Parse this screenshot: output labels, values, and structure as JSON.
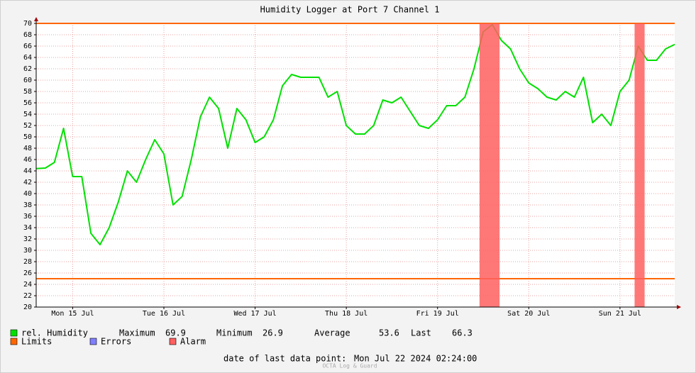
{
  "chart_data": {
    "type": "line",
    "title": "Humidity Logger at Port 7 Channel 1",
    "x": [
      15.1,
      15.2,
      15.3,
      15.4,
      15.5,
      15.6,
      15.7,
      15.8,
      15.9,
      16.0,
      16.1,
      16.2,
      16.3,
      16.4,
      16.5,
      16.6,
      16.7,
      16.8,
      16.9,
      17.0,
      17.1,
      17.2,
      17.3,
      17.4,
      17.5,
      17.6,
      17.7,
      17.8,
      17.9,
      18.0,
      18.1,
      18.2,
      18.3,
      18.4,
      18.5,
      18.6,
      18.7,
      18.8,
      18.9,
      19.0,
      19.1,
      19.2,
      19.3,
      19.4,
      19.5,
      19.6,
      19.7,
      19.8,
      19.9,
      20.0,
      20.1,
      20.2,
      20.3,
      20.4,
      20.5,
      20.6,
      20.7,
      20.8,
      20.9,
      21.0,
      21.1,
      21.2,
      21.3,
      21.4,
      21.5,
      21.6,
      21.7,
      21.8,
      21.9,
      22.0,
      22.1
    ],
    "xlim": [
      15.1,
      22.1
    ],
    "xticks": [
      {
        "value": 15.5,
        "label": "Mon 15 Jul"
      },
      {
        "value": 16.5,
        "label": "Tue 16 Jul"
      },
      {
        "value": 17.5,
        "label": "Wed 17 Jul"
      },
      {
        "value": 18.5,
        "label": "Thu 18 Jul"
      },
      {
        "value": 19.5,
        "label": "Fri 19 Jul"
      },
      {
        "value": 20.5,
        "label": "Sat 20 Jul"
      },
      {
        "value": 21.5,
        "label": "Sun 21 Jul"
      }
    ],
    "ylim": [
      20,
      70
    ],
    "yticks": [
      20,
      22,
      24,
      26,
      28,
      30,
      32,
      34,
      36,
      38,
      40,
      42,
      44,
      46,
      48,
      50,
      52,
      54,
      56,
      58,
      60,
      62,
      64,
      66,
      68,
      70
    ],
    "grid": true,
    "series": [
      {
        "name": "rel. Humidity",
        "color": "#00e000",
        "values": [
          44.4,
          44.5,
          45.5,
          51.5,
          43,
          43,
          33,
          31,
          34,
          38.5,
          44,
          42,
          46,
          49.5,
          47,
          38,
          39.5,
          46,
          53.5,
          57,
          55,
          48,
          55,
          53,
          49,
          50,
          53,
          59,
          61,
          60.5,
          60.5,
          60.5,
          57,
          58,
          52,
          50.5,
          50.5,
          52,
          56.5,
          56,
          57,
          54.5,
          52,
          51.5,
          53,
          55.5,
          55.5,
          57,
          62,
          68.5,
          69.8,
          67,
          65.5,
          62,
          59.5,
          58.5,
          57,
          56.5,
          58,
          57,
          60.5,
          52.5,
          54,
          52,
          58,
          60,
          66,
          63.5,
          63.5,
          65.5,
          66.3
        ]
      }
    ],
    "limits": {
      "name": "Limits",
      "color": "#ff6600",
      "values": [
        25,
        70
      ]
    },
    "errors": {
      "name": "Errors",
      "color": "#7f7fff"
    },
    "alarm": {
      "name": "Alarm",
      "color": "#ff6060",
      "ranges": [
        [
          19.96,
          20.18
        ],
        [
          21.66,
          21.77
        ]
      ]
    },
    "stats": [
      {
        "label": "Maximum",
        "value": 69.9
      },
      {
        "label": "Minimum",
        "value": 26.9
      },
      {
        "label": "Average",
        "value": 53.6
      },
      {
        "label": "Last",
        "value": 66.3
      }
    ],
    "footer": {
      "label": "date of last data point:",
      "value": "Mon Jul 22 2024 02:24:00"
    },
    "watermark": "OCTA Log & Guard"
  }
}
